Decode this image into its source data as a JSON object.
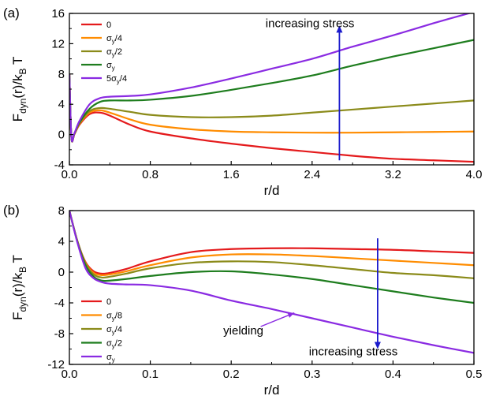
{
  "chart_data": [
    {
      "type": "line",
      "panel_label": "(a)",
      "xlabel": "r/d",
      "ylabel": "F_dyn(r)/k_B T",
      "xlim": [
        0.0,
        4.0
      ],
      "ylim": [
        -4,
        16
      ],
      "xticks": [
        "0.0",
        "0.8",
        "1.6",
        "2.4",
        "3.2",
        "4.0"
      ],
      "yticks": [
        "-4",
        "0",
        "4",
        "8",
        "12",
        "16"
      ],
      "legend_position": "top-left",
      "series": [
        {
          "name": "0",
          "color": "#e41a1c",
          "x": [
            0.0,
            0.02,
            0.05,
            0.1,
            0.2,
            0.3,
            0.4,
            0.6,
            0.8,
            1.2,
            1.6,
            2.0,
            2.4,
            2.8,
            3.2,
            3.6,
            4.0
          ],
          "y": [
            8.0,
            -0.4,
            0.05,
            1.3,
            2.7,
            2.9,
            2.5,
            1.3,
            0.4,
            -0.5,
            -1.2,
            -1.8,
            -2.3,
            -2.8,
            -3.2,
            -3.4,
            -3.6
          ]
        },
        {
          "name": "σ_y/4",
          "color": "#ff8c00",
          "x": [
            0.0,
            0.02,
            0.05,
            0.1,
            0.2,
            0.3,
            0.4,
            0.6,
            0.8,
            1.2,
            1.6,
            2.0,
            2.4,
            2.8,
            3.2,
            3.6,
            4.0
          ],
          "y": [
            8.0,
            -0.4,
            0.05,
            1.4,
            2.9,
            3.2,
            2.9,
            2.0,
            1.3,
            0.7,
            0.4,
            0.3,
            0.25,
            0.25,
            0.3,
            0.35,
            0.4
          ]
        },
        {
          "name": "σ_y/2",
          "color": "#8b8b1a",
          "x": [
            0.0,
            0.02,
            0.05,
            0.1,
            0.2,
            0.3,
            0.4,
            0.6,
            0.8,
            1.2,
            1.6,
            2.0,
            2.4,
            2.8,
            3.2,
            3.6,
            4.0
          ],
          "y": [
            8.0,
            -0.4,
            0.1,
            1.5,
            3.1,
            3.5,
            3.4,
            3.0,
            2.6,
            2.3,
            2.3,
            2.5,
            2.9,
            3.3,
            3.7,
            4.1,
            4.5
          ]
        },
        {
          "name": "σ_y",
          "color": "#1e7d1e",
          "x": [
            0.0,
            0.02,
            0.05,
            0.1,
            0.2,
            0.3,
            0.4,
            0.6,
            0.8,
            1.2,
            1.6,
            2.0,
            2.4,
            2.8,
            3.2,
            3.6,
            4.0
          ],
          "y": [
            8.0,
            -0.4,
            0.15,
            1.6,
            3.4,
            4.3,
            4.5,
            4.5,
            4.6,
            5.1,
            5.9,
            6.8,
            7.8,
            9.1,
            10.3,
            11.4,
            12.5
          ]
        },
        {
          "name": "5σ_y/4",
          "color": "#8a2be2",
          "x": [
            0.0,
            0.02,
            0.05,
            0.1,
            0.2,
            0.3,
            0.4,
            0.6,
            0.8,
            1.2,
            1.6,
            2.0,
            2.4,
            2.8,
            3.2,
            3.6,
            4.0
          ],
          "y": [
            8.0,
            -0.4,
            0.2,
            1.8,
            4.0,
            4.8,
            5.0,
            5.1,
            5.3,
            6.2,
            7.4,
            8.7,
            10.0,
            11.6,
            13.1,
            14.7,
            16.2
          ]
        }
      ],
      "annotations": [
        {
          "text": "increasing stress",
          "arrow": "up",
          "x": 2.67,
          "y_from": -3.4,
          "y_to": 14.4,
          "label_x": 1.94,
          "label_y": 14.2
        }
      ]
    },
    {
      "type": "line",
      "panel_label": "(b)",
      "xlabel": "r/d",
      "ylabel": "F_dyn(r)/k_B T",
      "xlim": [
        0.0,
        0.5
      ],
      "ylim": [
        -12,
        8
      ],
      "xticks": [
        "0.0",
        "0.1",
        "0.2",
        "0.3",
        "0.4",
        "0.5"
      ],
      "yticks": [
        "-12",
        "-8",
        "-4",
        "0",
        "4",
        "8"
      ],
      "legend_position": "bottom-left",
      "series": [
        {
          "name": "0",
          "color": "#e41a1c",
          "x": [
            0.0,
            0.01,
            0.02,
            0.03,
            0.04,
            0.05,
            0.07,
            0.1,
            0.15,
            0.2,
            0.25,
            0.3,
            0.35,
            0.4,
            0.45,
            0.5
          ],
          "y": [
            8.0,
            4.0,
            1.3,
            0.1,
            -0.2,
            -0.1,
            0.4,
            1.4,
            2.6,
            3.0,
            3.1,
            3.1,
            3.0,
            2.9,
            2.7,
            2.5
          ]
        },
        {
          "name": "σ_y/8",
          "color": "#ff8c00",
          "x": [
            0.0,
            0.01,
            0.02,
            0.03,
            0.04,
            0.05,
            0.07,
            0.1,
            0.15,
            0.2,
            0.25,
            0.3,
            0.35,
            0.4,
            0.45,
            0.5
          ],
          "y": [
            8.0,
            4.0,
            1.2,
            -0.1,
            -0.4,
            -0.3,
            0.1,
            0.9,
            1.9,
            2.3,
            2.3,
            2.1,
            1.8,
            1.5,
            1.2,
            0.9
          ]
        },
        {
          "name": "σ_y/4",
          "color": "#8b8b1a",
          "x": [
            0.0,
            0.01,
            0.02,
            0.03,
            0.04,
            0.05,
            0.07,
            0.1,
            0.15,
            0.2,
            0.25,
            0.3,
            0.35,
            0.4,
            0.45,
            0.5
          ],
          "y": [
            8.0,
            4.0,
            1.1,
            -0.3,
            -0.7,
            -0.6,
            -0.2,
            0.5,
            1.2,
            1.4,
            1.3,
            0.9,
            0.4,
            -0.1,
            -0.4,
            -0.8
          ]
        },
        {
          "name": "σ_y/2",
          "color": "#1e7d1e",
          "x": [
            0.0,
            0.01,
            0.02,
            0.03,
            0.04,
            0.05,
            0.07,
            0.1,
            0.15,
            0.2,
            0.25,
            0.3,
            0.35,
            0.4,
            0.45,
            0.5
          ],
          "y": [
            8.0,
            3.9,
            0.9,
            -0.6,
            -1.1,
            -1.1,
            -0.9,
            -0.5,
            0.0,
            0.1,
            -0.3,
            -0.9,
            -1.7,
            -2.5,
            -3.3,
            -4.0
          ]
        },
        {
          "name": "σ_y",
          "color": "#8a2be2",
          "x": [
            0.0,
            0.01,
            0.02,
            0.03,
            0.04,
            0.05,
            0.07,
            0.1,
            0.15,
            0.2,
            0.25,
            0.3,
            0.35,
            0.4,
            0.45,
            0.5
          ],
          "y": [
            8.0,
            3.8,
            0.5,
            -0.8,
            -1.3,
            -1.5,
            -1.6,
            -1.7,
            -2.4,
            -3.7,
            -4.8,
            -6.0,
            -7.2,
            -8.4,
            -9.5,
            -10.5
          ]
        }
      ],
      "annotations": [
        {
          "text": "increasing stress",
          "arrow": "down",
          "x": 0.381,
          "y_from": 4.4,
          "y_to": -10.0,
          "label_x": 0.296,
          "label_y": -10.8
        },
        {
          "text": "yielding",
          "arrow": "pointer",
          "x": 0.215,
          "y": -8.1,
          "target_x": 0.278,
          "target_y": -5.3
        }
      ]
    }
  ]
}
